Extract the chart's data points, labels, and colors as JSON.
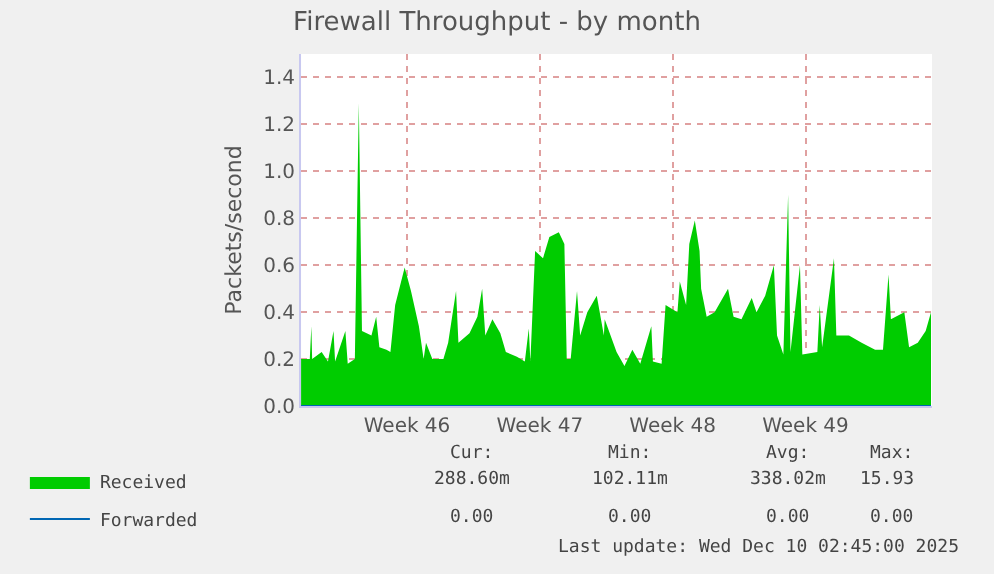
{
  "chart_data": {
    "type": "area",
    "title": "Firewall Throughput - by month",
    "ylabel": "Packets/second",
    "xlim": [
      "2025-11-06T22:00",
      "2025-12-10T04:00"
    ],
    "xticks": [
      {
        "value": "2025-11-12T12:00",
        "label": "Week 46"
      },
      {
        "value": "2025-11-19T12:00",
        "label": "Week 47"
      },
      {
        "value": "2025-11-26T12:00",
        "label": "Week 48"
      },
      {
        "value": "2025-12-03T12:00",
        "label": "Week 49"
      }
    ],
    "ylim": [
      0,
      1.5
    ],
    "yticks": [
      {
        "value": 0,
        "label": "0.0"
      },
      0.2,
      0.4,
      0.6,
      0.8,
      {
        "value": 1,
        "label": "1.0"
      },
      1.2,
      1.4
    ],
    "grid": true,
    "legend": "bottom left",
    "series": [
      {
        "name": "Received",
        "color": "#00cc00",
        "x": [
          "2025-11-06T22:00",
          "2025-11-07T09:00",
          "2025-11-07T11:00",
          "2025-11-07T12:00",
          "2025-11-08T00:00",
          "2025-11-08T08:00",
          "2025-11-08T15:00",
          "2025-11-08T17:00",
          "2025-11-09T06:00",
          "2025-11-09T09:00",
          "2025-11-09T18:00",
          "2025-11-09T23:00",
          "2025-11-10T03:00",
          "2025-11-10T15:00",
          "2025-11-10T21:00",
          "2025-11-11T01:00",
          "2025-11-11T10:00",
          "2025-11-11T15:00",
          "2025-11-11T21:00",
          "2025-11-12T09:00",
          "2025-11-12T17:00",
          "2025-11-13T03:00",
          "2025-11-13T09:00",
          "2025-11-13T12:00",
          "2025-11-13T20:00",
          "2025-11-14T10:00",
          "2025-11-14T16:00",
          "2025-11-15T02:00",
          "2025-11-15T05:00",
          "2025-11-15T19:00",
          "2025-11-16T05:00",
          "2025-11-16T11:00",
          "2025-11-16T15:00",
          "2025-11-17T00:00",
          "2025-11-17T10:00",
          "2025-11-17T17:00",
          "2025-11-18T07:00",
          "2025-11-18T17:00",
          "2025-11-18T22:00",
          "2025-11-19T00:00",
          "2025-11-19T06:00",
          "2025-11-19T16:00",
          "2025-11-20T00:00",
          "2025-11-20T12:00",
          "2025-11-20T19:00",
          "2025-11-20T22:00",
          "2025-11-21T03:00",
          "2025-11-21T11:00",
          "2025-11-21T15:00",
          "2025-11-22T00:00",
          "2025-11-22T12:00",
          "2025-11-22T21:00",
          "2025-11-22T22:00",
          "2025-11-23T13:00",
          "2025-11-23T23:00",
          "2025-11-24T09:00",
          "2025-11-24T19:00",
          "2025-11-25T09:00",
          "2025-11-25T11:00",
          "2025-11-25T22:00",
          "2025-11-26T03:00",
          "2025-11-26T18:00",
          "2025-11-26T21:00",
          "2025-11-27T05:00",
          "2025-11-27T09:00",
          "2025-11-27T16:00",
          "2025-11-27T22:00",
          "2025-11-28T00:00",
          "2025-11-28T07:00",
          "2025-11-28T17:00",
          "2025-11-29T10:00",
          "2025-11-29T17:00",
          "2025-11-30T03:00",
          "2025-11-30T16:00",
          "2025-11-30T22:00",
          "2025-12-01T09:00",
          "2025-12-01T20:00",
          "2025-12-02T00:00",
          "2025-12-02T08:00",
          "2025-12-02T14:00",
          "2025-12-02T17:00",
          "2025-12-03T05:00",
          "2025-12-03T08:00",
          "2025-12-04T03:00",
          "2025-12-04T06:00",
          "2025-12-04T09:00",
          "2025-12-05T00:00",
          "2025-12-05T03:00",
          "2025-12-05T19:00",
          "2025-12-06T11:00",
          "2025-12-07T04:00",
          "2025-12-07T14:00",
          "2025-12-07T21:00",
          "2025-12-08T00:00",
          "2025-12-08T17:00",
          "2025-12-08T23:00",
          "2025-12-09T10:00",
          "2025-12-09T20:00",
          "2025-12-10T02:45"
        ],
        "values": [
          0.2,
          0.2,
          0.34,
          0.2,
          0.23,
          0.19,
          0.32,
          0.19,
          0.32,
          0.18,
          0.2,
          1.29,
          0.32,
          0.3,
          0.38,
          0.25,
          0.24,
          0.23,
          0.43,
          0.59,
          0.49,
          0.34,
          0.2,
          0.27,
          0.2,
          0.2,
          0.27,
          0.49,
          0.27,
          0.31,
          0.38,
          0.5,
          0.3,
          0.37,
          0.31,
          0.23,
          0.21,
          0.19,
          0.33,
          0.19,
          0.66,
          0.63,
          0.72,
          0.74,
          0.69,
          0.2,
          0.2,
          0.49,
          0.3,
          0.4,
          0.47,
          0.3,
          0.37,
          0.23,
          0.17,
          0.24,
          0.18,
          0.34,
          0.19,
          0.18,
          0.43,
          0.4,
          0.53,
          0.43,
          0.69,
          0.79,
          0.66,
          0.5,
          0.38,
          0.4,
          0.5,
          0.38,
          0.37,
          0.46,
          0.4,
          0.47,
          0.6,
          0.3,
          0.22,
          0.9,
          0.23,
          0.6,
          0.22,
          0.23,
          0.43,
          0.25,
          0.63,
          0.3,
          0.3,
          0.27,
          0.24,
          0.24,
          0.56,
          0.37,
          0.4,
          0.25,
          0.27,
          0.32,
          0.4
        ]
      },
      {
        "name": "Forwarded",
        "color": "#0066b3",
        "type": "line",
        "x": [
          "2025-11-06T22:00",
          "2025-12-10T02:45"
        ],
        "values": [
          0,
          0
        ]
      }
    ],
    "annotations": [
      "Cur:",
      "Min:",
      "Avg:",
      "Max:",
      "288.60m",
      "102.11m",
      "338.02m",
      "15.93",
      "0.00",
      "0.00",
      "0.00",
      "0.00",
      "Last update: Wed Dec 10 02:45:00 2025"
    ]
  }
}
